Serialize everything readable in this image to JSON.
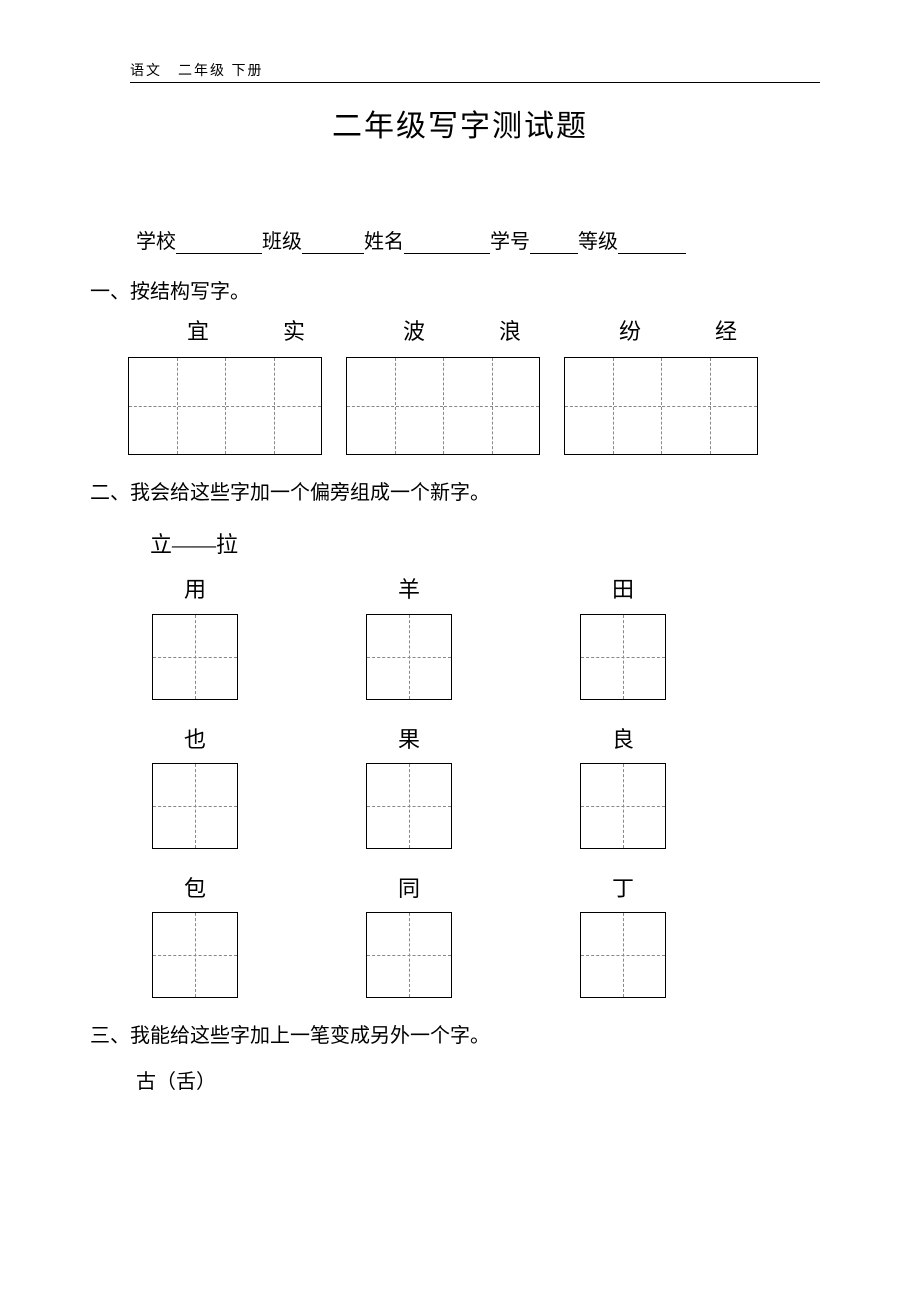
{
  "header": "语文　二年级 下册",
  "title": "二年级写字测试题",
  "info": {
    "fields": [
      {
        "label": "学校",
        "blank_width": 86
      },
      {
        "label": "班级",
        "blank_width": 62
      },
      {
        "label": "姓名",
        "blank_width": 86
      },
      {
        "label": "学号",
        "blank_width": 48
      },
      {
        "label": "等级",
        "blank_width": 68
      }
    ]
  },
  "q1": {
    "heading": "一、按结构写字。",
    "pairs": [
      {
        "chars": [
          "宜",
          "实"
        ]
      },
      {
        "chars": [
          "波",
          "浪"
        ]
      },
      {
        "chars": [
          "纷",
          "经"
        ]
      }
    ],
    "char_width": 96,
    "pair_gap": 24,
    "cell_size": 96
  },
  "q2": {
    "heading": "二、我会给这些字加一个偏旁组成一个新字。",
    "example": "立——拉",
    "rows": [
      [
        "用",
        "羊",
        "田"
      ],
      [
        "也",
        "果",
        "良"
      ],
      [
        "包",
        "同",
        "丁"
      ]
    ],
    "cell_size": 86,
    "col_gap": 124
  },
  "q3": {
    "heading": "三、我能给这些字加上一笔变成另外一个字。",
    "example": "古（舌）"
  },
  "colors": {
    "text": "#000000",
    "background": "#ffffff",
    "dash": "#888888"
  }
}
